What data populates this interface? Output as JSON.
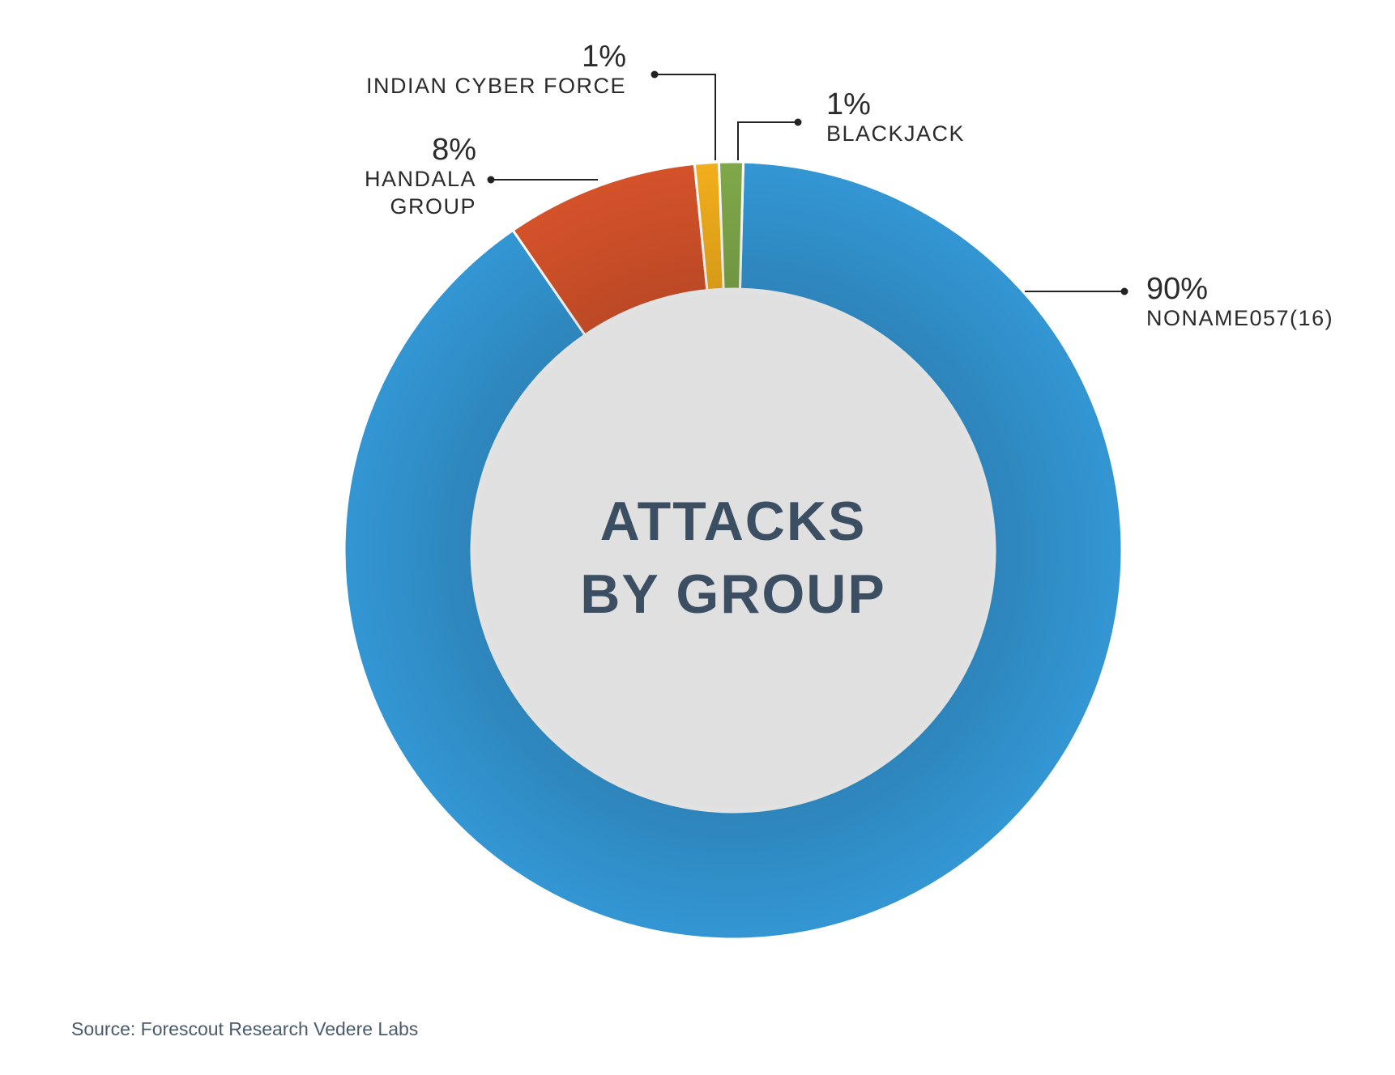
{
  "chart_data": {
    "type": "pie",
    "variant": "donut",
    "title": "ATTACKS BY GROUP",
    "title_lines": [
      "ATTACKS",
      "BY GROUP"
    ],
    "start": "top",
    "direction": "clockwise",
    "slices": [
      {
        "label_lines": [
          "NONAME057(16)"
        ],
        "value": 90,
        "display": "90%",
        "color": "#3396d3"
      },
      {
        "label_lines": [
          "HANDALA",
          "GROUP"
        ],
        "value": 8,
        "display": "8%",
        "color": "#d4522a"
      },
      {
        "label_lines": [
          "INDIAN CYBER FORCE"
        ],
        "value": 1,
        "display": "1%",
        "color": "#f2ae1b"
      },
      {
        "label_lines": [
          "BLACKJACK"
        ],
        "value": 1,
        "display": "1%",
        "color": "#7fa84a"
      }
    ]
  },
  "source": "Source: Forescout Research Vedere Labs"
}
